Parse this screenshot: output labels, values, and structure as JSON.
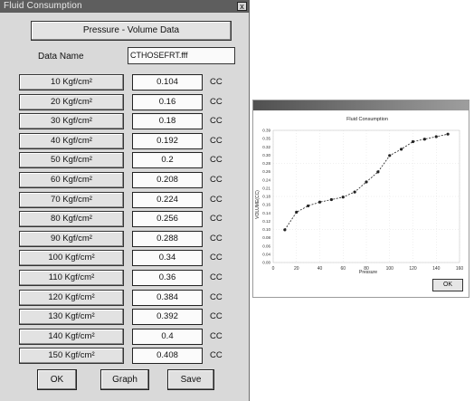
{
  "dialog": {
    "title": "Fluid Consumption",
    "close_glyph": "x",
    "header": "Pressure - Volume Data",
    "data_name_label": "Data Name",
    "data_name_value": "CTHOSEFRT.fff",
    "rows": [
      {
        "label": "10 Kgf/cm²",
        "value": "0.104",
        "unit": "CC"
      },
      {
        "label": "20 Kgf/cm²",
        "value": "0.16",
        "unit": "CC"
      },
      {
        "label": "30 Kgf/cm²",
        "value": "0.18",
        "unit": "CC"
      },
      {
        "label": "40 Kgf/cm²",
        "value": "0.192",
        "unit": "CC"
      },
      {
        "label": "50 Kgf/cm²",
        "value": "0.2",
        "unit": "CC"
      },
      {
        "label": "60 Kgf/cm²",
        "value": "0.208",
        "unit": "CC"
      },
      {
        "label": "70 Kgf/cm²",
        "value": "0.224",
        "unit": "CC"
      },
      {
        "label": "80 Kgf/cm²",
        "value": "0.256",
        "unit": "CC"
      },
      {
        "label": "90 Kgf/cm²",
        "value": "0.288",
        "unit": "CC"
      },
      {
        "label": "100 Kgf/cm²",
        "value": "0.34",
        "unit": "CC"
      },
      {
        "label": "110 Kgf/cm²",
        "value": "0.36",
        "unit": "CC"
      },
      {
        "label": "120 Kgf/cm²",
        "value": "0.384",
        "unit": "CC"
      },
      {
        "label": "130 Kgf/cm²",
        "value": "0.392",
        "unit": "CC"
      },
      {
        "label": "140 Kgf/cm²",
        "value": "0.4",
        "unit": "CC"
      },
      {
        "label": "150 Kgf/cm²",
        "value": "0.408",
        "unit": "CC"
      }
    ],
    "buttons": {
      "ok": "OK",
      "graph": "Graph",
      "save": "Save"
    }
  },
  "graph_dialog": {
    "title": "",
    "ok": "OK"
  },
  "chart_data": {
    "type": "line",
    "title": "Fluid Consumption",
    "xlabel": "Pressure",
    "ylabel": "VOLUME(CC)",
    "x": [
      10,
      20,
      30,
      40,
      50,
      60,
      70,
      80,
      90,
      100,
      110,
      120,
      130,
      140,
      150
    ],
    "y": [
      0.104,
      0.16,
      0.18,
      0.192,
      0.2,
      0.208,
      0.224,
      0.256,
      0.288,
      0.34,
      0.36,
      0.384,
      0.392,
      0.4,
      0.408
    ],
    "x_ticks": [
      "0",
      "20",
      "40",
      "60",
      "80",
      "100",
      "120",
      "140",
      "160"
    ],
    "y_ticks": [
      "0.00",
      "0.04",
      "0.06",
      "0.08",
      "0.10",
      "0.12",
      "0.14",
      "0.16",
      "0.18",
      "0.21",
      "0.24",
      "0.26",
      "0.28",
      "0.30",
      "0.32",
      "0.35",
      "0.39"
    ],
    "xlim": [
      0,
      160
    ],
    "ylim": [
      0,
      0.42
    ],
    "grid": true,
    "line_color": "#222222"
  }
}
